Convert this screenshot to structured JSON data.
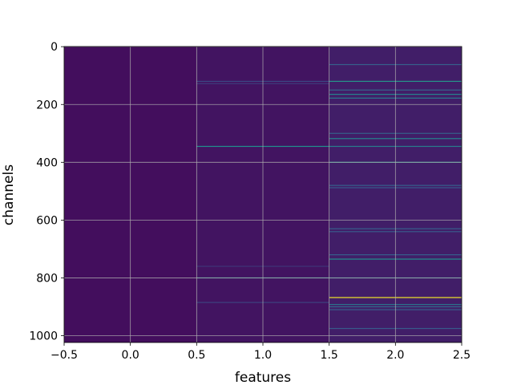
{
  "chart_data": {
    "type": "heatmap",
    "title": "",
    "xlabel": "features",
    "ylabel": "channels",
    "xlim": [
      -0.5,
      2.5
    ],
    "ylim": [
      1023.5,
      -0.5
    ],
    "y_inverted": true,
    "grid": true,
    "colormap": "viridis",
    "value_range": [
      0,
      1
    ],
    "x_ticks": [
      "−0.5",
      "0.0",
      "0.5",
      "1.0",
      "1.5",
      "2.0",
      "2.5"
    ],
    "y_ticks": [
      "0",
      "200",
      "400",
      "600",
      "800",
      "1000"
    ],
    "columns": [
      {
        "x": 0,
        "baseline": 0.04
      },
      {
        "x": 1,
        "baseline": 0.06
      },
      {
        "x": 2,
        "baseline": 0.09
      }
    ],
    "highlighted_cells": [
      {
        "col": 1,
        "row": 120,
        "value": 0.22
      },
      {
        "col": 1,
        "row": 128,
        "value": 0.18
      },
      {
        "col": 1,
        "row": 345,
        "value": 0.5
      },
      {
        "col": 1,
        "row": 760,
        "value": 0.16
      },
      {
        "col": 1,
        "row": 800,
        "value": 0.45
      },
      {
        "col": 1,
        "row": 885,
        "value": 0.2
      },
      {
        "col": 2,
        "row": 62,
        "value": 0.3
      },
      {
        "col": 2,
        "row": 120,
        "value": 0.52
      },
      {
        "col": 2,
        "row": 150,
        "value": 0.32
      },
      {
        "col": 2,
        "row": 165,
        "value": 0.45
      },
      {
        "col": 2,
        "row": 178,
        "value": 0.4
      },
      {
        "col": 2,
        "row": 300,
        "value": 0.3
      },
      {
        "col": 2,
        "row": 318,
        "value": 0.45
      },
      {
        "col": 2,
        "row": 345,
        "value": 0.42
      },
      {
        "col": 2,
        "row": 400,
        "value": 0.5
      },
      {
        "col": 2,
        "row": 480,
        "value": 0.3
      },
      {
        "col": 2,
        "row": 488,
        "value": 0.28
      },
      {
        "col": 2,
        "row": 630,
        "value": 0.3
      },
      {
        "col": 2,
        "row": 640,
        "value": 0.28
      },
      {
        "col": 2,
        "row": 720,
        "value": 0.3
      },
      {
        "col": 2,
        "row": 735,
        "value": 0.5
      },
      {
        "col": 2,
        "row": 800,
        "value": 0.4
      },
      {
        "col": 2,
        "row": 868,
        "value": 0.98
      },
      {
        "col": 2,
        "row": 892,
        "value": 0.38
      },
      {
        "col": 2,
        "row": 900,
        "value": 0.35
      },
      {
        "col": 2,
        "row": 910,
        "value": 0.3
      },
      {
        "col": 2,
        "row": 975,
        "value": 0.28
      }
    ]
  }
}
